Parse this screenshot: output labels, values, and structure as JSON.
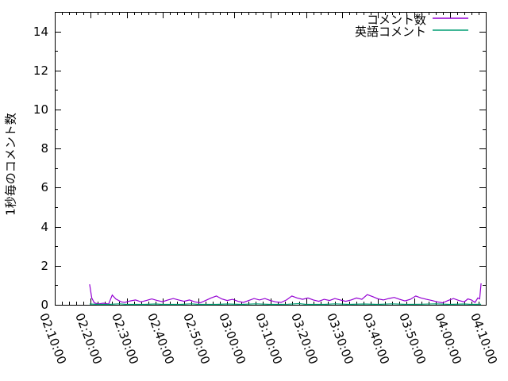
{
  "chart_data": {
    "type": "line",
    "title": "",
    "xlabel": "",
    "ylabel": "1秒毎のコメント数",
    "background": "#ffffff",
    "axis_color": "#000000",
    "grid": false,
    "legend_position": "top-right-inside",
    "x_axis": {
      "unit": "time HH:MM:SS",
      "range_minutes": [
        130,
        250
      ],
      "tick_minutes": [
        130,
        140,
        150,
        160,
        170,
        180,
        190,
        200,
        210,
        220,
        230,
        240,
        250
      ],
      "tick_labels": [
        "02:10:00",
        "02:20:00",
        "02:30:00",
        "02:40:00",
        "02:50:00",
        "03:00:00",
        "03:10:00",
        "03:20:00",
        "03:30:00",
        "03:40:00",
        "03:50:00",
        "04:00:00",
        "04:10:00"
      ],
      "minor_tick_step_minutes": 2,
      "label_rotation_deg": 69
    },
    "y_axis": {
      "range": [
        0,
        15
      ],
      "ticks": [
        0,
        2,
        4,
        6,
        8,
        10,
        12,
        14
      ],
      "tick_labels": [
        "0",
        "2",
        "4",
        "6",
        "8",
        "10",
        "12",
        "14"
      ],
      "minor_tick_step": 1
    },
    "series": [
      {
        "name": "コメント数",
        "color": "#9400d3",
        "points": [
          [
            139.7,
            1.05
          ],
          [
            140.3,
            0.35
          ],
          [
            141,
            0.1
          ],
          [
            142,
            0.04
          ],
          [
            143.5,
            0.08
          ],
          [
            145,
            0.04
          ],
          [
            146,
            0.5
          ],
          [
            147,
            0.3
          ],
          [
            148.5,
            0.15
          ],
          [
            149.5,
            0.12
          ],
          [
            151,
            0.2
          ],
          [
            152.5,
            0.25
          ],
          [
            154,
            0.15
          ],
          [
            155.5,
            0.22
          ],
          [
            157,
            0.3
          ],
          [
            158.5,
            0.22
          ],
          [
            160,
            0.16
          ],
          [
            161.5,
            0.25
          ],
          [
            163,
            0.32
          ],
          [
            164.5,
            0.25
          ],
          [
            166,
            0.18
          ],
          [
            167.5,
            0.25
          ],
          [
            169,
            0.15
          ],
          [
            170.5,
            0.1
          ],
          [
            172,
            0.22
          ],
          [
            173.5,
            0.35
          ],
          [
            175,
            0.45
          ],
          [
            176.5,
            0.3
          ],
          [
            178,
            0.22
          ],
          [
            179.5,
            0.28
          ],
          [
            181,
            0.18
          ],
          [
            182.5,
            0.12
          ],
          [
            184,
            0.22
          ],
          [
            185.5,
            0.32
          ],
          [
            187,
            0.25
          ],
          [
            188.5,
            0.32
          ],
          [
            190,
            0.22
          ],
          [
            191.5,
            0.15
          ],
          [
            193,
            0.12
          ],
          [
            194.5,
            0.25
          ],
          [
            196,
            0.45
          ],
          [
            197.5,
            0.35
          ],
          [
            199,
            0.28
          ],
          [
            200.5,
            0.35
          ],
          [
            202,
            0.25
          ],
          [
            203.5,
            0.18
          ],
          [
            205,
            0.28
          ],
          [
            206.5,
            0.22
          ],
          [
            208,
            0.32
          ],
          [
            209.5,
            0.25
          ],
          [
            211,
            0.18
          ],
          [
            212.5,
            0.25
          ],
          [
            214,
            0.35
          ],
          [
            215.5,
            0.28
          ],
          [
            217,
            0.52
          ],
          [
            218.5,
            0.42
          ],
          [
            220,
            0.3
          ],
          [
            221.5,
            0.25
          ],
          [
            223,
            0.32
          ],
          [
            224.5,
            0.38
          ],
          [
            226,
            0.28
          ],
          [
            227.5,
            0.2
          ],
          [
            229,
            0.28
          ],
          [
            230.5,
            0.45
          ],
          [
            232,
            0.35
          ],
          [
            233.5,
            0.28
          ],
          [
            235,
            0.22
          ],
          [
            236.5,
            0.15
          ],
          [
            238,
            0.1
          ],
          [
            239.5,
            0.22
          ],
          [
            241,
            0.32
          ],
          [
            242.5,
            0.22
          ],
          [
            244,
            0.15
          ],
          [
            245,
            0.3
          ],
          [
            246,
            0.25
          ],
          [
            247,
            0.12
          ],
          [
            247.8,
            0.35
          ],
          [
            248.3,
            0.3
          ],
          [
            248.7,
            1.1
          ]
        ]
      },
      {
        "name": "英語コメント",
        "color": "#009e73",
        "points": [
          [
            139.7,
            0.04
          ],
          [
            142,
            0.02
          ],
          [
            145,
            0.02
          ],
          [
            148,
            0.05
          ],
          [
            150,
            0.02
          ],
          [
            155,
            0.02
          ],
          [
            158,
            0.04
          ],
          [
            160,
            0.02
          ],
          [
            165,
            0.02
          ],
          [
            168,
            0.05
          ],
          [
            170,
            0.02
          ],
          [
            175,
            0.02
          ],
          [
            178,
            0.04
          ],
          [
            182,
            0.02
          ],
          [
            186,
            0.05
          ],
          [
            190,
            0.02
          ],
          [
            195,
            0.03
          ],
          [
            198,
            0.06
          ],
          [
            200,
            0.02
          ],
          [
            205,
            0.02
          ],
          [
            208,
            0.05
          ],
          [
            212,
            0.02
          ],
          [
            216,
            0.04
          ],
          [
            220,
            0.02
          ],
          [
            224,
            0.05
          ],
          [
            228,
            0.02
          ],
          [
            232,
            0.03
          ],
          [
            236,
            0.05
          ],
          [
            240,
            0.02
          ],
          [
            244,
            0.04
          ],
          [
            246,
            0.02
          ],
          [
            248.7,
            0.03
          ]
        ]
      }
    ]
  }
}
